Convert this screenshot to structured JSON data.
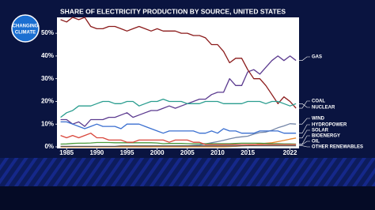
{
  "logo": {
    "line1": "CHANGING",
    "line2": "CLIMATE"
  },
  "chart_data": {
    "type": "line",
    "title": "SHARE OF ELECTRICITY PRODUCTION BY SOURCE, UNITED STATES",
    "x": [
      1984,
      1985,
      1986,
      1987,
      1988,
      1989,
      1990,
      1991,
      1992,
      1993,
      1994,
      1995,
      1996,
      1997,
      1998,
      1999,
      2000,
      2001,
      2002,
      2003,
      2004,
      2005,
      2006,
      2007,
      2008,
      2009,
      2010,
      2011,
      2012,
      2013,
      2014,
      2015,
      2016,
      2017,
      2018,
      2019,
      2020,
      2021,
      2022,
      2023
    ],
    "xlim": [
      1983.4,
      2023.5
    ],
    "xticks": [
      1985,
      1990,
      1995,
      2000,
      2005,
      2010,
      2015,
      2022
    ],
    "ylim": [
      0,
      57
    ],
    "yticks": [
      {
        "value": 0,
        "label": "0%"
      },
      {
        "value": 10,
        "label": "10%"
      },
      {
        "value": 20,
        "label": "20%"
      },
      {
        "value": 30,
        "label": "30%"
      },
      {
        "value": 40,
        "label": "40%"
      },
      {
        "value": 50,
        "label": "50%"
      }
    ],
    "series": [
      {
        "name": "GAS",
        "color": "#5b3a8f",
        "values": [
          12,
          12,
          10,
          11,
          9,
          12,
          12,
          12,
          13,
          13,
          14,
          15,
          13,
          14,
          15,
          16,
          16,
          17,
          18,
          17,
          18,
          19,
          20,
          21,
          21,
          23,
          24,
          24,
          30,
          27,
          27,
          33,
          34,
          32,
          35,
          38,
          40,
          38,
          40,
          38
        ]
      },
      {
        "name": "COAL",
        "color": "#8b1a1a",
        "values": [
          56,
          55,
          57,
          56,
          57,
          53,
          52,
          52,
          53,
          53,
          52,
          51,
          52,
          53,
          52,
          51,
          52,
          51,
          51,
          51,
          50,
          50,
          49,
          49,
          48,
          45,
          45,
          42,
          37,
          39,
          39,
          34,
          30,
          30,
          27,
          23,
          19,
          22,
          20,
          17
        ]
      },
      {
        "name": "NUCLEAR",
        "color": "#2a9d8f",
        "values": [
          13,
          15,
          16,
          18,
          18,
          18,
          19,
          20,
          20,
          19,
          19,
          20,
          20,
          18,
          19,
          20,
          20,
          21,
          20,
          20,
          20,
          19,
          19,
          19,
          20,
          20,
          20,
          19,
          19,
          19,
          19,
          20,
          20,
          20,
          19,
          20,
          20,
          19,
          18,
          19
        ]
      },
      {
        "name": "WIND",
        "color": "#7486a8",
        "values": [
          0,
          0,
          0,
          0,
          0,
          0,
          0,
          0,
          0,
          0,
          0,
          0,
          0,
          0,
          0,
          0,
          0.1,
          0.2,
          0.3,
          0.3,
          0.4,
          0.4,
          0.7,
          0.8,
          1.3,
          1.8,
          2.3,
          2.9,
          3.5,
          4.1,
          4.4,
          4.7,
          5.6,
          6.3,
          6.5,
          7.3,
          8.4,
          9.2,
          10.2,
          10
        ]
      },
      {
        "name": "HYDROPOWER",
        "color": "#3a6fd0",
        "values": [
          11,
          11,
          10,
          9,
          8,
          9,
          10,
          9,
          9,
          9,
          8,
          10,
          10,
          10,
          9,
          8,
          7,
          6,
          7,
          7,
          7,
          7,
          7,
          6,
          6,
          7,
          6,
          8,
          7,
          7,
          6,
          6,
          6,
          7,
          7,
          7,
          7,
          6,
          6,
          6
        ]
      },
      {
        "name": "SOLAR",
        "color": "#e8862f",
        "values": [
          0,
          0,
          0,
          0,
          0,
          0,
          0,
          0,
          0,
          0,
          0,
          0,
          0,
          0,
          0,
          0,
          0,
          0,
          0,
          0,
          0,
          0,
          0,
          0,
          0,
          0,
          0,
          0,
          0.1,
          0.2,
          0.4,
          0.6,
          0.9,
          1.3,
          1.6,
          1.8,
          2.3,
          2.8,
          3.4,
          3.9
        ]
      },
      {
        "name": "BIOENERGY",
        "color": "#4c9a3c",
        "values": [
          1.2,
          1.3,
          1.5,
          1.6,
          1.6,
          1.7,
          1.9,
          1.9,
          1.9,
          1.8,
          1.8,
          1.8,
          1.8,
          1.8,
          1.8,
          1.8,
          1.7,
          1.4,
          1.5,
          1.5,
          1.5,
          1.4,
          1.4,
          1.4,
          1.4,
          1.4,
          1.4,
          1.4,
          1.4,
          1.5,
          1.6,
          1.6,
          1.6,
          1.6,
          1.5,
          1.4,
          1.4,
          1.3,
          1.3,
          1.2
        ]
      },
      {
        "name": "OIL",
        "color": "#d9463b",
        "values": [
          5,
          4,
          5,
          4,
          5,
          6,
          4,
          4,
          3,
          3,
          3,
          2,
          2,
          3,
          3,
          3,
          3,
          3,
          2,
          3,
          3,
          3,
          2,
          2,
          1,
          1,
          1,
          1,
          1,
          1,
          1,
          1,
          1,
          1,
          1,
          1,
          1,
          1,
          1,
          1
        ]
      },
      {
        "name": "OTHER RENEWABLES",
        "color": "#555555",
        "values": [
          0.2,
          0.2,
          0.2,
          0.2,
          0.2,
          0.2,
          0.2,
          0.2,
          0.2,
          0.2,
          0.4,
          0.4,
          0.4,
          0.4,
          0.4,
          0.4,
          0.4,
          0.4,
          0.4,
          0.4,
          0.4,
          0.4,
          0.4,
          0.4,
          0.4,
          0.4,
          0.4,
          0.4,
          0.4,
          0.4,
          0.5,
          0.5,
          0.5,
          0.5,
          0.5,
          0.5,
          0.5,
          0.5,
          0.5,
          0.5
        ]
      }
    ]
  }
}
